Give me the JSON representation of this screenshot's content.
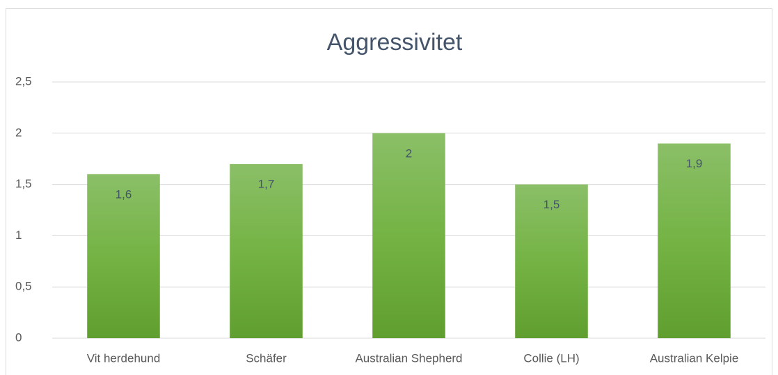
{
  "chart_data": {
    "type": "bar",
    "title": "Aggressivitet",
    "categories": [
      "Vit herdehund",
      "Schäfer",
      "Australian Shepherd",
      "Collie (LH)",
      "Australian Kelpie"
    ],
    "values": [
      1.6,
      1.7,
      2,
      1.5,
      1.9
    ],
    "value_labels": [
      "1,6",
      "1,7",
      "2",
      "1,5",
      "1,9"
    ],
    "color": "#70ad47",
    "ylim": [
      0,
      2.5
    ],
    "yticks": [
      0,
      {
        "value": 0.5,
        "label": "0,5"
      },
      1,
      {
        "value": 1.5,
        "label": "1,5"
      },
      2,
      {
        "value": 2.5,
        "label": "2,5"
      }
    ],
    "grid": true
  }
}
